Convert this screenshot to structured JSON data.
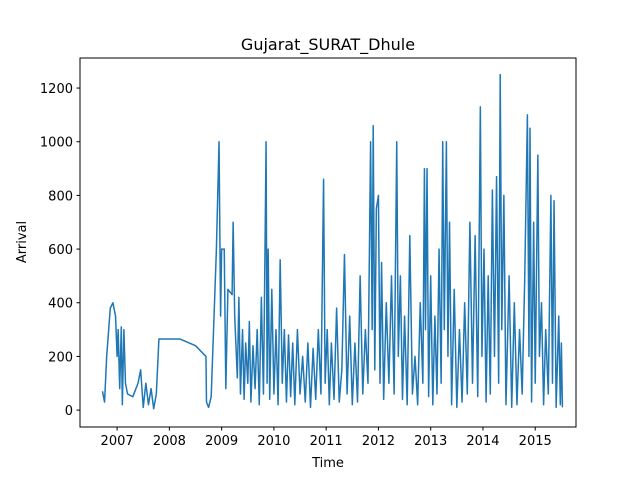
{
  "chart_data": {
    "type": "line",
    "title": "Gujarat_SURAT_Dhule",
    "x_label": "Time",
    "y_label": "Arrival",
    "color": "#1f77b4",
    "xlim": [
      2006.29,
      2015.78
    ],
    "ylim": [
      -63,
      1312
    ],
    "xticks": [
      2007,
      2008,
      2009,
      2010,
      2011,
      2012,
      2013,
      2014,
      2015
    ],
    "yticks": [
      0,
      200,
      400,
      600,
      800,
      1000,
      1200
    ],
    "x": [
      2006.72,
      2006.76,
      2006.8,
      2006.87,
      2006.92,
      2006.97,
      2007.0,
      2007.02,
      2007.05,
      2007.08,
      2007.1,
      2007.13,
      2007.16,
      2007.2,
      2007.3,
      2007.4,
      2007.45,
      2007.5,
      2007.55,
      2007.6,
      2007.65,
      2007.7,
      2007.75,
      2007.8,
      2008.2,
      2008.5,
      2008.7,
      2008.71,
      2008.75,
      2008.8,
      2008.9,
      2008.95,
      2008.98,
      2009.0,
      2009.05,
      2009.08,
      2009.12,
      2009.2,
      2009.22,
      2009.25,
      2009.3,
      2009.33,
      2009.36,
      2009.4,
      2009.43,
      2009.46,
      2009.5,
      2009.53,
      2009.56,
      2009.6,
      2009.64,
      2009.68,
      2009.72,
      2009.76,
      2009.8,
      2009.83,
      2009.85,
      2009.87,
      2009.89,
      2009.92,
      2009.96,
      2010.0,
      2010.04,
      2010.08,
      2010.12,
      2010.16,
      2010.2,
      2010.24,
      2010.28,
      2010.32,
      2010.36,
      2010.4,
      2010.45,
      2010.5,
      2010.55,
      2010.6,
      2010.65,
      2010.7,
      2010.75,
      2010.8,
      2010.85,
      2010.9,
      2010.95,
      2010.98,
      2011.02,
      2011.06,
      2011.1,
      2011.15,
      2011.2,
      2011.25,
      2011.3,
      2011.35,
      2011.4,
      2011.45,
      2011.5,
      2011.55,
      2011.6,
      2011.65,
      2011.7,
      2011.75,
      2011.8,
      2011.85,
      2011.88,
      2011.9,
      2011.93,
      2011.96,
      2012.0,
      2012.03,
      2012.06,
      2012.1,
      2012.15,
      2012.2,
      2012.25,
      2012.3,
      2012.35,
      2012.38,
      2012.42,
      2012.46,
      2012.5,
      2012.55,
      2012.6,
      2012.65,
      2012.7,
      2012.75,
      2012.8,
      2012.85,
      2012.88,
      2012.9,
      2012.93,
      2012.96,
      2013.0,
      2013.04,
      2013.08,
      2013.12,
      2013.16,
      2013.2,
      2013.23,
      2013.26,
      2013.3,
      2013.33,
      2013.36,
      2013.4,
      2013.45,
      2013.5,
      2013.55,
      2013.6,
      2013.65,
      2013.7,
      2013.75,
      2013.8,
      2013.85,
      2013.9,
      2013.95,
      2013.98,
      2014.02,
      2014.06,
      2014.1,
      2014.14,
      2014.18,
      2014.22,
      2014.26,
      2014.3,
      2014.33,
      2014.36,
      2014.4,
      2014.44,
      2014.5,
      2014.55,
      2014.6,
      2014.65,
      2014.7,
      2014.75,
      2014.8,
      2014.85,
      2014.88,
      2014.9,
      2014.93,
      2014.97,
      2015.0,
      2015.05,
      2015.08,
      2015.12,
      2015.16,
      2015.2,
      2015.25,
      2015.3,
      2015.33,
      2015.36,
      2015.4,
      2015.45,
      2015.48,
      2015.5,
      2015.52
    ],
    "values": [
      70,
      30,
      200,
      380,
      400,
      350,
      200,
      300,
      80,
      310,
      20,
      300,
      100,
      60,
      50,
      100,
      150,
      10,
      100,
      20,
      80,
      5,
      60,
      265,
      265,
      240,
      200,
      30,
      10,
      50,
      600,
      1000,
      350,
      600,
      600,
      80,
      450,
      430,
      700,
      350,
      120,
      420,
      60,
      300,
      40,
      250,
      100,
      330,
      30,
      240,
      80,
      300,
      20,
      420,
      60,
      600,
      1000,
      100,
      600,
      40,
      450,
      60,
      300,
      20,
      560,
      100,
      300,
      30,
      280,
      50,
      250,
      20,
      300,
      60,
      200,
      30,
      250,
      10,
      230,
      40,
      300,
      60,
      860,
      100,
      300,
      20,
      250,
      40,
      380,
      30,
      150,
      580,
      60,
      350,
      20,
      250,
      30,
      500,
      60,
      300,
      100,
      1000,
      300,
      1060,
      150,
      750,
      800,
      100,
      550,
      40,
      400,
      100,
      500,
      60,
      1000,
      200,
      500,
      40,
      350,
      20,
      650,
      60,
      200,
      20,
      400,
      100,
      900,
      300,
      900,
      50,
      500,
      20,
      350,
      60,
      600,
      100,
      1000,
      300,
      1000,
      200,
      700,
      20,
      450,
      10,
      300,
      30,
      400,
      60,
      700,
      100,
      650,
      50,
      1130,
      200,
      600,
      30,
      500,
      60,
      820,
      200,
      870,
      100,
      1250,
      300,
      800,
      20,
      500,
      10,
      400,
      20,
      300,
      60,
      500,
      1100,
      200,
      1050,
      30,
      700,
      100,
      950,
      200,
      400,
      20,
      300,
      60,
      800,
      100,
      780,
      10,
      350,
      20,
      250,
      10
    ]
  }
}
